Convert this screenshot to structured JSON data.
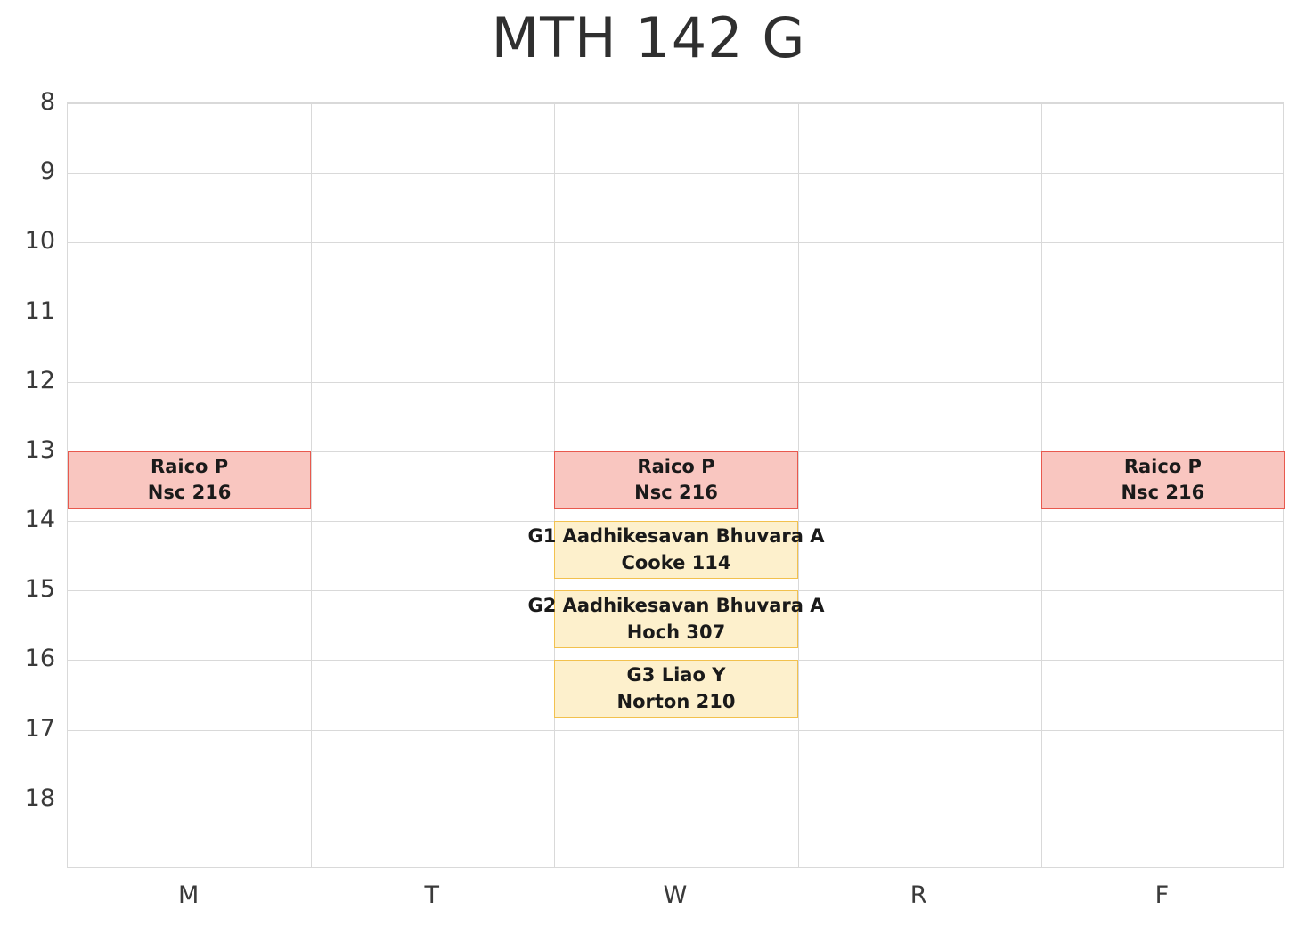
{
  "title": "MTH 142 G",
  "chart_data": {
    "type": "schedule",
    "title": "MTH 142 G",
    "xlabel": "",
    "ylabel": "",
    "x_categories": [
      "M",
      "T",
      "W",
      "R",
      "F"
    ],
    "y_ticks": [
      8,
      9,
      10,
      11,
      12,
      13,
      14,
      15,
      16,
      17,
      18
    ],
    "y_range": [
      8,
      19
    ],
    "grid": true,
    "events": [
      {
        "day": "M",
        "start": 13.0,
        "end": 13.83,
        "line1": "Raico P",
        "line2": "Nsc 216",
        "fill": "#f9c6c0",
        "border": "#e8594e"
      },
      {
        "day": "W",
        "start": 13.0,
        "end": 13.83,
        "line1": "Raico P",
        "line2": "Nsc 216",
        "fill": "#f9c6c0",
        "border": "#e8594e"
      },
      {
        "day": "F",
        "start": 13.0,
        "end": 13.83,
        "line1": "Raico P",
        "line2": "Nsc 216",
        "fill": "#f9c6c0",
        "border": "#e8594e"
      },
      {
        "day": "W",
        "start": 14.0,
        "end": 14.83,
        "line1": "G1 Aadhikesavan Bhuvara A",
        "line2": "Cooke 114",
        "fill": "#fdf0cc",
        "border": "#f2c14e"
      },
      {
        "day": "W",
        "start": 15.0,
        "end": 15.83,
        "line1": "G2 Aadhikesavan Bhuvara A",
        "line2": "Hoch 307",
        "fill": "#fdf0cc",
        "border": "#f2c14e"
      },
      {
        "day": "W",
        "start": 16.0,
        "end": 16.83,
        "line1": "G3 Liao Y",
        "line2": "Norton 210",
        "fill": "#fdf0cc",
        "border": "#f2c14e"
      }
    ],
    "colors": {
      "grid": "#d9d9d9",
      "axis_text": "#3a3a3a",
      "event_text": "#1a1a1a",
      "title_text": "#2f2f2f",
      "background": "#ffffff",
      "lecture_fill": "#f9c6c0",
      "lecture_border": "#e8594e",
      "recitation_fill": "#fdf0cc",
      "recitation_border": "#f2c14e"
    }
  }
}
